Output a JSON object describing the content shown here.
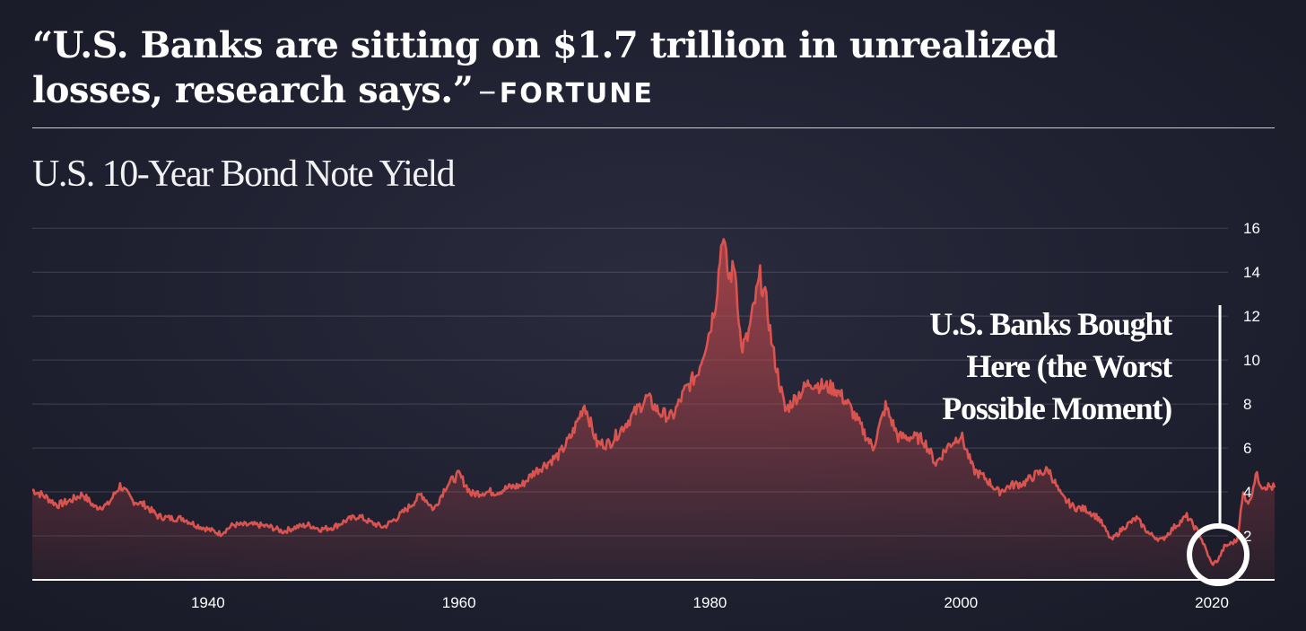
{
  "headline": {
    "quote": "“U.S. Banks are sitting on $1.7 trillion in unrealized losses, research says.”",
    "dash": "–",
    "source": "FORTUNE"
  },
  "chart_data": {
    "type": "area",
    "title": "U.S. 10-Year Bond Note Yield",
    "xlabel": "",
    "ylabel": "",
    "xlim": [
      1926,
      2025
    ],
    "ylim": [
      0,
      16.5
    ],
    "x_ticks": [
      1940,
      1960,
      1980,
      2000,
      2020
    ],
    "y_ticks": [
      2,
      4,
      6,
      8,
      10,
      12,
      14,
      16
    ],
    "grid": true,
    "y_axis_side": "right",
    "series": [
      {
        "color": "#d9534f",
        "x": [
          1926,
          1927,
          1928,
          1929,
          1930,
          1931,
          1932,
          1933,
          1934,
          1935,
          1936,
          1937,
          1938,
          1939,
          1940,
          1941,
          1942,
          1943,
          1944,
          1945,
          1946,
          1947,
          1948,
          1949,
          1950,
          1951,
          1952,
          1953,
          1954,
          1955,
          1956,
          1957,
          1958,
          1959,
          1960,
          1961,
          1962,
          1963,
          1964,
          1965,
          1966,
          1967,
          1968,
          1969,
          1970,
          1971,
          1972,
          1973,
          1974,
          1975,
          1976,
          1977,
          1978,
          1979,
          1980,
          1980.5,
          1981,
          1981.5,
          1982,
          1982.5,
          1983,
          1984,
          1984.5,
          1985,
          1986,
          1987,
          1988,
          1989,
          1990,
          1991,
          1992,
          1993,
          1994,
          1995,
          1996,
          1997,
          1998,
          1999,
          2000,
          2001,
          2002,
          2003,
          2004,
          2005,
          2006,
          2007,
          2008,
          2009,
          2010,
          2011,
          2012,
          2013,
          2014,
          2015,
          2016,
          2017,
          2018,
          2019,
          2020,
          2020.5,
          2021,
          2022,
          2022.5,
          2023,
          2023.5,
          2024,
          2025
        ],
        "values": [
          4.1,
          3.8,
          3.4,
          3.6,
          3.9,
          3.3,
          3.4,
          4.3,
          3.6,
          3.4,
          2.9,
          2.8,
          2.8,
          2.5,
          2.3,
          2.1,
          2.5,
          2.5,
          2.5,
          2.4,
          2.2,
          2.4,
          2.5,
          2.3,
          2.4,
          2.7,
          2.9,
          2.6,
          2.4,
          2.8,
          3.3,
          3.9,
          3.2,
          4.3,
          4.8,
          3.9,
          4.0,
          4.0,
          4.2,
          4.3,
          4.9,
          5.3,
          5.7,
          6.6,
          8.0,
          6.2,
          6.2,
          6.9,
          7.6,
          8.3,
          7.6,
          7.4,
          8.6,
          9.4,
          11.4,
          12.8,
          15.8,
          13.7,
          14.3,
          10.5,
          11.0,
          13.8,
          12.6,
          10.5,
          7.7,
          8.4,
          9.0,
          8.8,
          8.7,
          8.0,
          7.0,
          6.0,
          7.9,
          6.5,
          6.5,
          6.4,
          5.3,
          6.1,
          6.6,
          5.0,
          4.6,
          4.0,
          4.3,
          4.4,
          4.8,
          5.0,
          3.8,
          3.3,
          3.2,
          2.8,
          1.8,
          2.4,
          2.8,
          2.1,
          1.8,
          2.4,
          2.9,
          2.1,
          0.7,
          0.9,
          1.5,
          1.8,
          3.9,
          3.5,
          4.8,
          4.3,
          4.2
        ]
      }
    ],
    "annotation": {
      "text_lines": [
        "U.S. Banks Bought",
        "Here (the Worst",
        "Possible Moment)"
      ],
      "x": 2020.5,
      "y": 0.9
    }
  }
}
